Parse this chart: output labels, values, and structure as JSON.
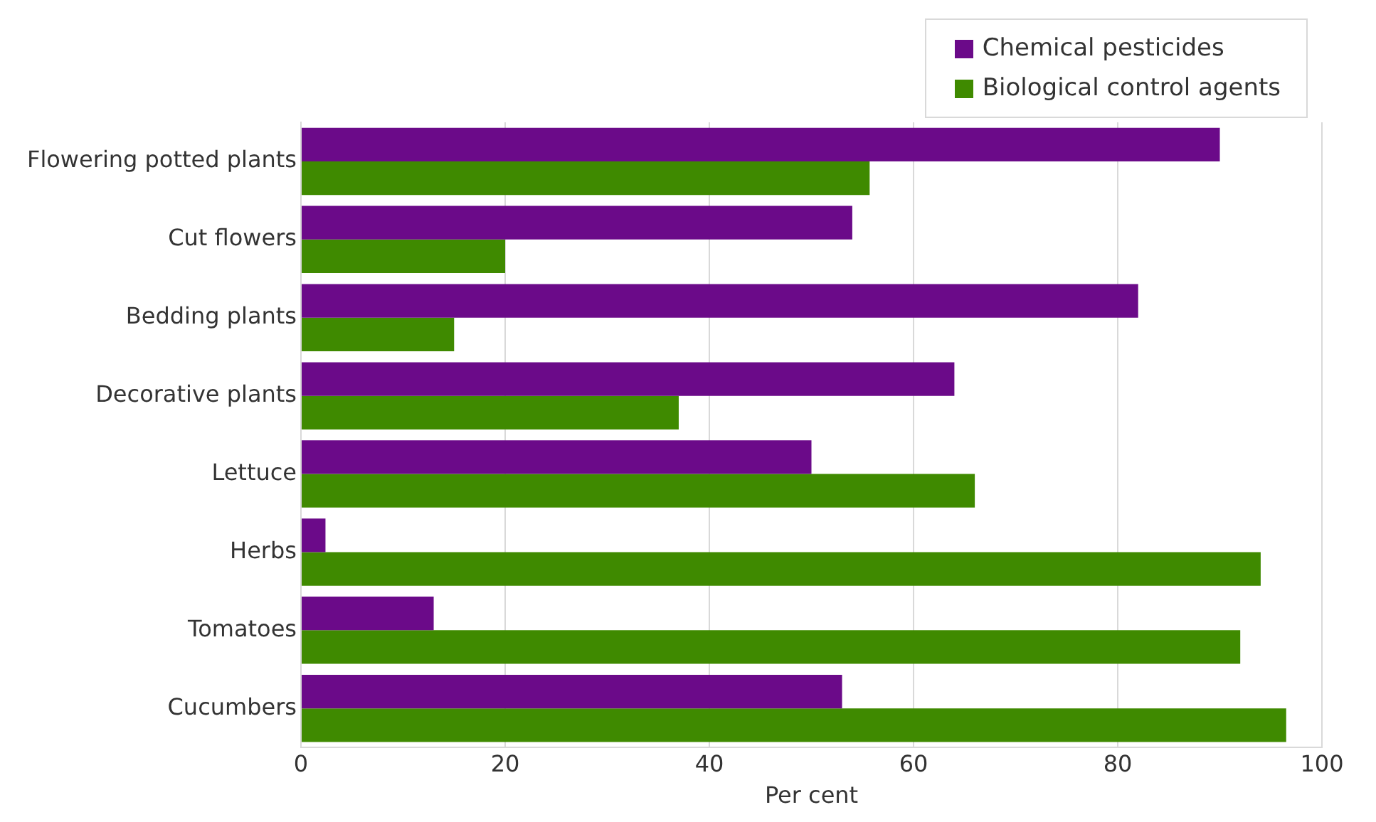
{
  "chart_data": {
    "type": "bar",
    "orientation": "horizontal",
    "xlabel": "Per cent",
    "categories": [
      "Flowering potted plants",
      "Cut flowers",
      "Bedding plants",
      "Decorative plants",
      "Lettuce",
      "Herbs",
      "Tomatoes",
      "Cucumbers"
    ],
    "series": [
      {
        "name": "Chemical pesticides",
        "color": "#6b0a89",
        "values": [
          90,
          54,
          82,
          64,
          50,
          2.4,
          13,
          53
        ]
      },
      {
        "name": "Biological control agents",
        "color": "#3f8a00",
        "values": [
          55.7,
          20,
          15,
          37,
          66,
          94,
          92,
          96.5
        ]
      }
    ],
    "xlim": [
      0,
      100
    ],
    "xticks": [
      0,
      20,
      40,
      60,
      80,
      100
    ],
    "grid": "x",
    "legend": "top right"
  }
}
